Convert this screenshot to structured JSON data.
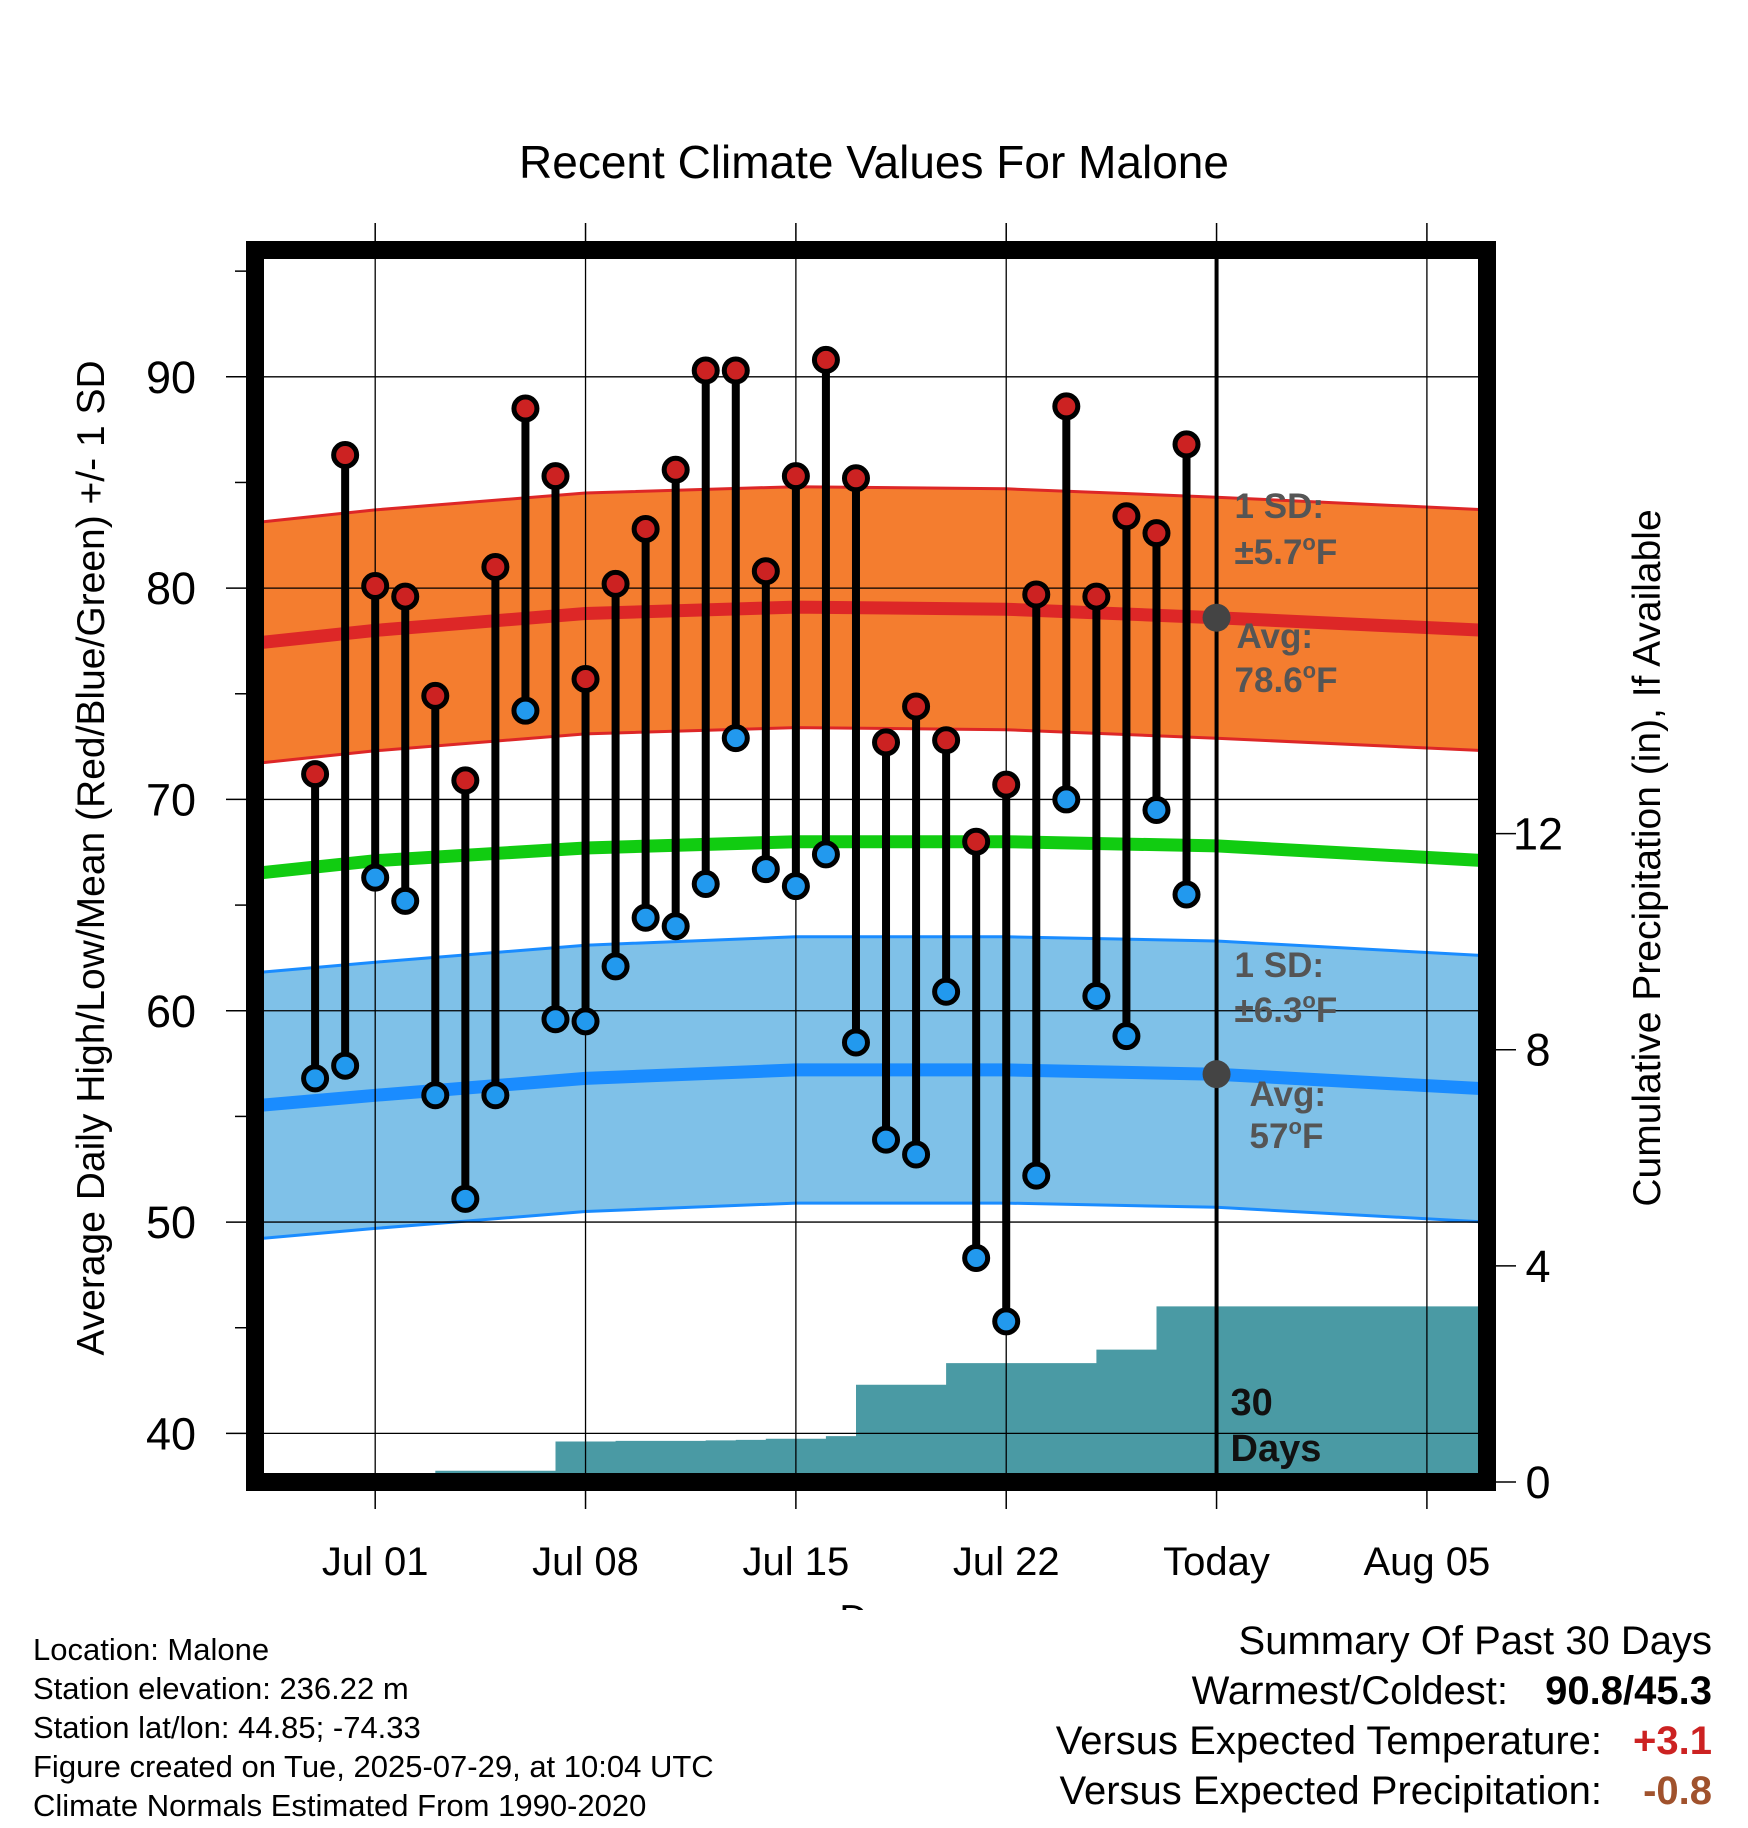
{
  "chart_data": {
    "type": "line",
    "title": "Recent Climate Values For Malone",
    "xlabel": "Day",
    "ylabel": "Average Daily High/Low/Mean (Red/Blue/Green) +/- 1 SD",
    "y2label": "Cumulative Precipitation (in), If Available",
    "xlim": [
      "2025-06-27",
      "2025-08-07"
    ],
    "ylim": [
      37.7,
      96
    ],
    "y2lim": [
      0,
      22.8
    ],
    "x_tick_labels": [
      "Jul 01",
      "Jul 08",
      "Jul 15",
      "Jul 22",
      "Today",
      "Aug 05"
    ],
    "x_tick_dates": [
      "2025-07-01",
      "2025-07-08",
      "2025-07-15",
      "2025-07-22",
      "2025-07-29",
      "2025-08-05"
    ],
    "y_ticks": [
      40,
      50,
      60,
      70,
      80,
      90
    ],
    "y2_ticks": [
      0,
      4,
      8,
      12
    ],
    "grid": true,
    "observed": {
      "dates": [
        "2025-06-29",
        "2025-06-30",
        "2025-07-01",
        "2025-07-02",
        "2025-07-03",
        "2025-07-04",
        "2025-07-05",
        "2025-07-06",
        "2025-07-07",
        "2025-07-08",
        "2025-07-09",
        "2025-07-10",
        "2025-07-11",
        "2025-07-12",
        "2025-07-13",
        "2025-07-14",
        "2025-07-15",
        "2025-07-16",
        "2025-07-17",
        "2025-07-18",
        "2025-07-19",
        "2025-07-20",
        "2025-07-21",
        "2025-07-22",
        "2025-07-23",
        "2025-07-24",
        "2025-07-25",
        "2025-07-26",
        "2025-07-27",
        "2025-07-28"
      ],
      "highs": [
        71.2,
        86.3,
        80.1,
        79.6,
        74.9,
        70.9,
        81.0,
        88.5,
        85.3,
        75.7,
        80.2,
        82.8,
        85.6,
        90.3,
        90.3,
        80.8,
        85.3,
        90.8,
        85.2,
        72.7,
        74.4,
        72.8,
        68.0,
        70.7,
        79.7,
        88.6,
        79.6,
        83.4,
        82.6,
        86.8
      ],
      "lows": [
        56.8,
        57.4,
        66.3,
        65.2,
        56.0,
        51.1,
        56.0,
        74.2,
        59.6,
        59.5,
        62.1,
        64.4,
        64.0,
        66.0,
        72.9,
        66.7,
        65.9,
        67.4,
        58.5,
        53.9,
        53.2,
        60.9,
        48.3,
        45.3,
        52.2,
        70.0,
        60.7,
        58.8,
        69.5,
        65.5
      ],
      "high_color": "#cc2222",
      "low_color": "#2299ee"
    },
    "normal_high": {
      "name": "Avg:",
      "x": [
        "2025-06-27",
        "2025-07-01",
        "2025-07-08",
        "2025-07-15",
        "2025-07-22",
        "2025-07-29",
        "2025-08-07"
      ],
      "mean": [
        77.4,
        78.0,
        78.8,
        79.1,
        79.0,
        78.6,
        78.0
      ],
      "sd": 5.7,
      "label_avg": "78.6",
      "label_sd": "±5.7",
      "line_color": "#dd2727",
      "band_color": "#f47d2f"
    },
    "normal_low": {
      "name": "Avg:",
      "x": [
        "2025-06-27",
        "2025-07-01",
        "2025-07-08",
        "2025-07-15",
        "2025-07-22",
        "2025-07-29",
        "2025-08-07"
      ],
      "mean": [
        55.5,
        56.0,
        56.8,
        57.2,
        57.2,
        57.0,
        56.3
      ],
      "sd": 6.3,
      "label_avg": "57",
      "label_sd": "±6.3",
      "line_color": "#1a8cff",
      "band_color": "#7fc1e8"
    },
    "normal_mean": {
      "x": [
        "2025-06-27",
        "2025-07-01",
        "2025-07-08",
        "2025-07-15",
        "2025-07-22",
        "2025-07-29",
        "2025-08-07"
      ],
      "values": [
        66.5,
        67.1,
        67.7,
        68.0,
        68.0,
        67.8,
        67.1
      ],
      "color": "#11cc11"
    },
    "precip": {
      "dates": [
        "2025-06-30",
        "2025-07-01",
        "2025-07-02",
        "2025-07-03",
        "2025-07-04",
        "2025-07-05",
        "2025-07-06",
        "2025-07-07",
        "2025-07-08",
        "2025-07-09",
        "2025-07-10",
        "2025-07-11",
        "2025-07-12",
        "2025-07-13",
        "2025-07-14",
        "2025-07-15",
        "2025-07-16",
        "2025-07-17",
        "2025-07-18",
        "2025-07-19",
        "2025-07-20",
        "2025-07-21",
        "2025-07-22",
        "2025-07-23",
        "2025-07-24",
        "2025-07-25",
        "2025-07-26",
        "2025-07-27",
        "2025-07-28",
        "2025-08-07"
      ],
      "cumulative": [
        0.0,
        0.13,
        0.15,
        0.21,
        0.21,
        0.21,
        0.21,
        0.75,
        0.75,
        0.76,
        0.76,
        0.76,
        0.77,
        0.78,
        0.8,
        0.8,
        0.85,
        1.8,
        1.8,
        1.8,
        2.2,
        2.2,
        2.2,
        2.2,
        2.2,
        2.45,
        2.45,
        3.25,
        3.25,
        3.25
      ],
      "color": "#4a9aa4"
    },
    "today_label": "30\nDays",
    "avg_marker_color": "#444444",
    "annotation_color": "#555555"
  },
  "footer": {
    "location": "Location: Malone",
    "elevation": "Station elevation: 236.22 m",
    "latlon": "Station lat/lon: 44.85; -74.33",
    "created": "Figure created on Tue, 2025-07-29, at 10:04 UTC",
    "normals": "Climate Normals Estimated From 1990-2020"
  },
  "summary": {
    "title": "Summary Of Past 30 Days",
    "warmest_coldest_label": "Warmest/Coldest:",
    "warmest_coldest_value": "90.8/45.3",
    "temp_label": "Versus Expected Temperature:",
    "temp_value": "+3.1",
    "temp_color": "#cc2222",
    "precip_label": "Versus Expected Precipitation:",
    "precip_value": "-0.8",
    "precip_color": "#a0522d"
  }
}
